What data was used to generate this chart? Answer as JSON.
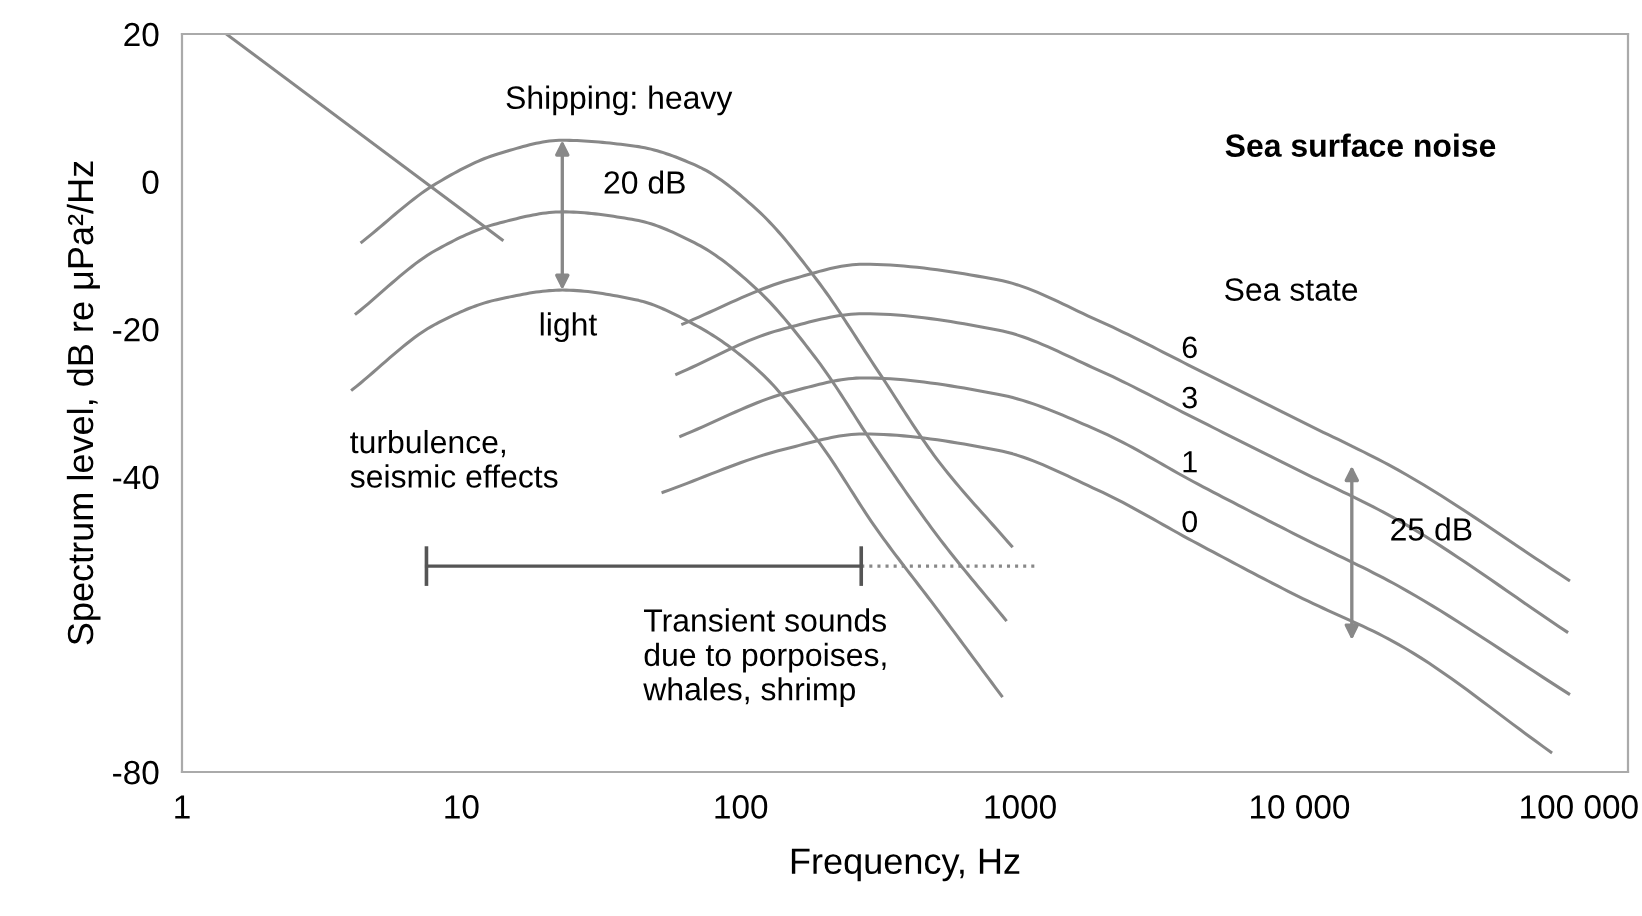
{
  "chart_data": {
    "type": "line",
    "xlabel": "Frequency, Hz",
    "ylabel": "Spectrum level, dB re μPa²/Hz",
    "log": "x",
    "xlim": [
      1,
      150000
    ],
    "ylim": [
      -80,
      20
    ],
    "xticks": [
      1,
      10,
      100,
      1000,
      {
        "value": 10000,
        "label": "10 000"
      },
      {
        "value": 100000,
        "label": "100 000"
      }
    ],
    "yticks": [
      20,
      0,
      -20,
      -40,
      -80
    ],
    "grid": false,
    "legend": false,
    "marker": "none",
    "series": [
      {
        "color": "#888888",
        "x": [
          1.44,
          14.0
        ],
        "values": [
          20,
          -7.9
        ]
      },
      {
        "color": "#888888",
        "x": [
          4.4,
          8.1,
          13.4,
          23,
          42,
          70,
          115,
          188,
          308,
          506,
          933
        ],
        "values": [
          -8.2,
          -0.3,
          3.7,
          5.6,
          4.8,
          2.1,
          -3.9,
          -13.4,
          -25.5,
          -37.7,
          -49.4
        ]
      },
      {
        "color": "#888888",
        "x": [
          4.2,
          8.1,
          13.4,
          23,
          42,
          70,
          115,
          188,
          308,
          506,
          888
        ],
        "values": [
          -17.9,
          -9.3,
          -5.7,
          -4.1,
          -5.2,
          -8.5,
          -14.7,
          -24.2,
          -36.4,
          -48.0,
          -59.4
        ]
      },
      {
        "color": "#888888",
        "x": [
          4.07,
          8.1,
          13.4,
          23,
          42,
          70,
          115,
          188,
          308,
          506,
          859
        ],
        "values": [
          -28.2,
          -19.3,
          -16.0,
          -14.7,
          -16.0,
          -19.6,
          -25.5,
          -35.0,
          -47.2,
          -58.0,
          -69.7
        ]
      },
      {
        "name": "6",
        "color": "#888888",
        "x": [
          62,
          150,
          275,
          831,
          1897,
          4335,
          9900,
          22600,
          92000
        ],
        "values": [
          -19.3,
          -13.3,
          -11.2,
          -13.3,
          -18.8,
          -25.5,
          -32.3,
          -39.1,
          -54.0
        ]
      },
      {
        "name": "3",
        "color": "#888888",
        "x": [
          59,
          138,
          275,
          831,
          1897,
          4335,
          9900,
          22600,
          90600
        ],
        "values": [
          -26.1,
          -20.1,
          -17.9,
          -20.1,
          -25.5,
          -32.3,
          -39.1,
          -45.9,
          -61.0
        ]
      },
      {
        "name": "1",
        "color": "#888888",
        "x": [
          61,
          150,
          275,
          831,
          1897,
          4335,
          9900,
          22600,
          92000
        ],
        "values": [
          -34.5,
          -28.5,
          -26.6,
          -28.8,
          -33.7,
          -41.0,
          -48.0,
          -54.8,
          -69.4
        ]
      },
      {
        "name": "0",
        "color": "#888888",
        "x": [
          52.7,
          142,
          275,
          831,
          1897,
          4335,
          9900,
          22600,
          79400
        ],
        "values": [
          -42.1,
          -36.3,
          -34.2,
          -36.4,
          -41.8,
          -49.1,
          -56.2,
          -62.7,
          -77.3
        ]
      },
      {
        "color": "#555555",
        "x": [
          7.5,
          270
        ],
        "values": [
          -52.1,
          -52.1
        ]
      },
      {
        "color": "#888888",
        "line_style": "dotted",
        "x": [
          270,
          1157
        ],
        "values": [
          -52.1,
          -52.1
        ]
      }
    ],
    "annotations": [
      "Sea surface noise",
      "Shipping: heavy",
      "20 dB",
      {
        "text": "light",
        "x": 23,
        "y": -14.7
      },
      "turbulence,\nseismic effects",
      "Transient sounds\ndue to porpoises,\nwhales, shrimp",
      "Sea state",
      "25 dB"
    ]
  }
}
